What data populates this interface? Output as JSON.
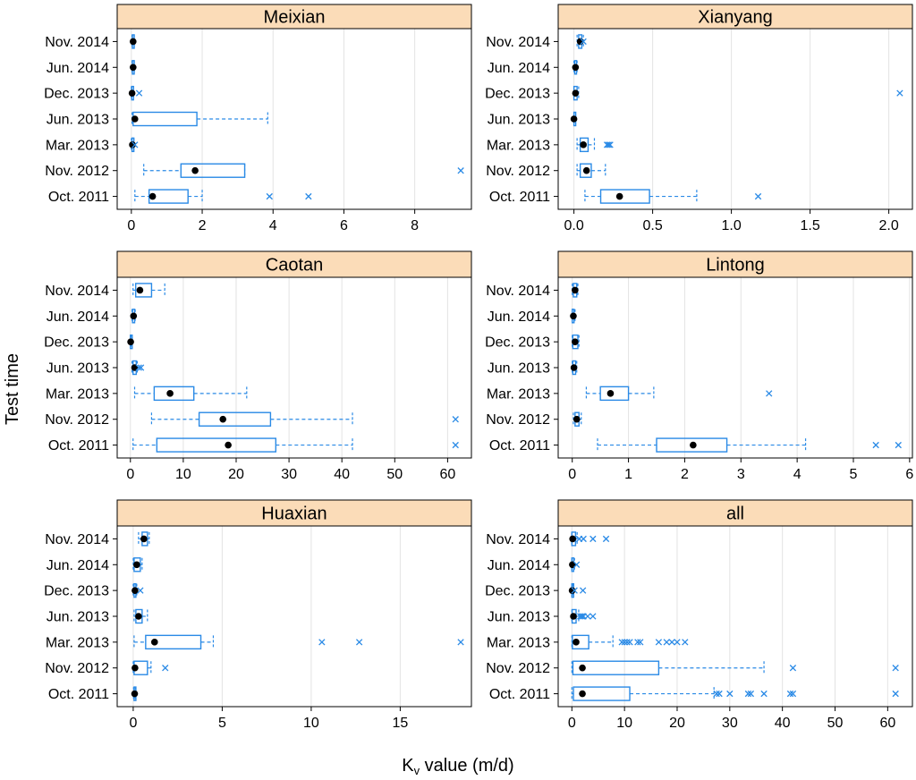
{
  "figure": {
    "ylabel": "Test time",
    "xlabel_main": "K",
    "xlabel_sub": "v",
    "xlabel_rest": " value (m/d)"
  },
  "colors": {
    "box": "#2a8ae6",
    "median_dot": "#000000",
    "outlier": "#2a8ae6",
    "strip_fill": "#fbdcb8",
    "grid": "#e3e3e3"
  },
  "chart_data": [
    {
      "type": "boxplot",
      "title": "Meixian",
      "categories": [
        "Oct. 2011",
        "Nov. 2012",
        "Mar. 2013",
        "Jun. 2013",
        "Dec. 2013",
        "Jun. 2014",
        "Nov. 2014"
      ],
      "xlim": [
        -0.4,
        9.6
      ],
      "xticks": [
        0,
        2,
        4,
        6,
        8
      ],
      "boxes": [
        {
          "wlo": 0.1,
          "q1": 0.5,
          "med": 0.6,
          "q3": 1.6,
          "whi": 2.0,
          "out": [
            3.9,
            5.0
          ]
        },
        {
          "wlo": 0.35,
          "q1": 1.4,
          "med": 1.8,
          "q3": 3.2,
          "whi": 3.2,
          "out": [
            9.3
          ]
        },
        {
          "wlo": 0.0,
          "q1": 0.02,
          "med": 0.03,
          "q3": 0.05,
          "whi": 0.07,
          "out": [
            0.1
          ]
        },
        {
          "wlo": 0.02,
          "q1": 0.05,
          "med": 0.1,
          "q3": 1.85,
          "whi": 3.85,
          "out": []
        },
        {
          "wlo": 0.0,
          "q1": 0.01,
          "med": 0.02,
          "q3": 0.04,
          "whi": 0.06,
          "out": [
            0.22
          ]
        },
        {
          "wlo": 0.02,
          "q1": 0.03,
          "med": 0.05,
          "q3": 0.07,
          "whi": 0.08,
          "out": []
        },
        {
          "wlo": 0.02,
          "q1": 0.03,
          "med": 0.05,
          "q3": 0.07,
          "whi": 0.08,
          "out": []
        }
      ]
    },
    {
      "type": "boxplot",
      "title": "Xianyang",
      "categories": [
        "Oct. 2011",
        "Nov. 2012",
        "Mar. 2013",
        "Jun. 2013",
        "Dec. 2013",
        "Jun. 2014",
        "Nov. 2014"
      ],
      "xlim": [
        -0.1,
        2.15
      ],
      "xticks": [
        0.0,
        0.5,
        1.0,
        1.5,
        2.0
      ],
      "boxes": [
        {
          "wlo": 0.07,
          "q1": 0.17,
          "med": 0.29,
          "q3": 0.48,
          "whi": 0.78,
          "out": [
            1.17
          ]
        },
        {
          "wlo": 0.02,
          "q1": 0.04,
          "med": 0.08,
          "q3": 0.11,
          "whi": 0.2,
          "out": []
        },
        {
          "wlo": 0.02,
          "q1": 0.04,
          "med": 0.06,
          "q3": 0.09,
          "whi": 0.13,
          "out": [
            0.21,
            0.22,
            0.23
          ]
        },
        {
          "wlo": 0.0,
          "q1": 0.0,
          "med": 0.0,
          "q3": 0.0,
          "whi": 0.0,
          "out": []
        },
        {
          "wlo": 0.0,
          "q1": 0.0,
          "med": 0.01,
          "q3": 0.02,
          "whi": 0.03,
          "out": [
            2.07
          ]
        },
        {
          "wlo": 0.0,
          "q1": 0.005,
          "med": 0.01,
          "q3": 0.015,
          "whi": 0.02,
          "out": []
        },
        {
          "wlo": 0.02,
          "q1": 0.03,
          "med": 0.04,
          "q3": 0.05,
          "whi": 0.06,
          "out": [
            0.06
          ]
        }
      ]
    },
    {
      "type": "boxplot",
      "title": "Caotan",
      "categories": [
        "Oct. 2011",
        "Nov. 2012",
        "Mar. 2013",
        "Jun. 2013",
        "Dec. 2013",
        "Jun. 2014",
        "Nov. 2014"
      ],
      "xlim": [
        -2.5,
        64.5
      ],
      "xticks": [
        0,
        10,
        20,
        30,
        40,
        50,
        60
      ],
      "boxes": [
        {
          "wlo": 0.5,
          "q1": 5.0,
          "med": 18.5,
          "q3": 27.5,
          "whi": 42.0,
          "out": [
            61.5
          ]
        },
        {
          "wlo": 4.0,
          "q1": 13.0,
          "med": 17.5,
          "q3": 26.5,
          "whi": 42.0,
          "out": [
            61.5
          ]
        },
        {
          "wlo": 0.8,
          "q1": 4.5,
          "med": 7.5,
          "q3": 12.0,
          "whi": 22.0,
          "out": []
        },
        {
          "wlo": 0.3,
          "q1": 0.5,
          "med": 0.8,
          "q3": 1.1,
          "whi": 1.3,
          "out": [
            1.6,
            2.0
          ]
        },
        {
          "wlo": 0.0,
          "q1": 0.0,
          "med": 0.05,
          "q3": 0.1,
          "whi": 0.1,
          "out": []
        },
        {
          "wlo": 0.3,
          "q1": 0.4,
          "med": 0.6,
          "q3": 0.8,
          "whi": 0.9,
          "out": []
        },
        {
          "wlo": 0.5,
          "q1": 1.0,
          "med": 1.8,
          "q3": 4.0,
          "whi": 6.5,
          "out": []
        }
      ]
    },
    {
      "type": "boxplot",
      "title": "Lintong",
      "categories": [
        "Oct. 2011",
        "Nov. 2012",
        "Mar. 2013",
        "Jun. 2013",
        "Dec. 2013",
        "Jun. 2014",
        "Nov. 2014"
      ],
      "xlim": [
        -0.25,
        6.05
      ],
      "xticks": [
        0,
        1,
        2,
        3,
        4,
        5,
        6
      ],
      "boxes": [
        {
          "wlo": 0.45,
          "q1": 1.5,
          "med": 2.15,
          "q3": 2.75,
          "whi": 4.15,
          "out": [
            5.4,
            5.8
          ]
        },
        {
          "wlo": 0.02,
          "q1": 0.05,
          "med": 0.08,
          "q3": 0.12,
          "whi": 0.16,
          "out": []
        },
        {
          "wlo": 0.25,
          "q1": 0.5,
          "med": 0.68,
          "q3": 1.0,
          "whi": 1.45,
          "out": [
            3.5
          ]
        },
        {
          "wlo": 0.0,
          "q1": 0.01,
          "med": 0.03,
          "q3": 0.06,
          "whi": 0.08,
          "out": []
        },
        {
          "wlo": 0.0,
          "q1": 0.01,
          "med": 0.05,
          "q3": 0.1,
          "whi": 0.12,
          "out": []
        },
        {
          "wlo": 0.0,
          "q1": 0.0,
          "med": 0.02,
          "q3": 0.03,
          "whi": 0.05,
          "out": []
        },
        {
          "wlo": 0.0,
          "q1": 0.02,
          "med": 0.05,
          "q3": 0.08,
          "whi": 0.1,
          "out": []
        }
      ]
    },
    {
      "type": "boxplot",
      "title": "Huaxian",
      "categories": [
        "Oct. 2011",
        "Nov. 2012",
        "Mar. 2013",
        "Jun. 2013",
        "Dec. 2013",
        "Jun. 2014",
        "Nov. 2014"
      ],
      "xlim": [
        -0.9,
        19.0
      ],
      "xticks": [
        0,
        5,
        10,
        15
      ],
      "boxes": [
        {
          "wlo": 0.02,
          "q1": 0.05,
          "med": 0.08,
          "q3": 0.1,
          "whi": 0.12,
          "out": []
        },
        {
          "wlo": 0.0,
          "q1": 0.05,
          "med": 0.1,
          "q3": 0.8,
          "whi": 1.0,
          "out": [
            1.8
          ]
        },
        {
          "wlo": 0.05,
          "q1": 0.7,
          "med": 1.2,
          "q3": 3.8,
          "whi": 4.5,
          "out": [
            10.6,
            12.7,
            18.4
          ]
        },
        {
          "wlo": 0.05,
          "q1": 0.15,
          "med": 0.3,
          "q3": 0.5,
          "whi": 0.8,
          "out": []
        },
        {
          "wlo": 0.0,
          "q1": 0.05,
          "med": 0.1,
          "q3": 0.15,
          "whi": 0.2,
          "out": [
            0.4
          ]
        },
        {
          "wlo": 0.0,
          "q1": 0.05,
          "med": 0.2,
          "q3": 0.4,
          "whi": 0.5,
          "out": []
        },
        {
          "wlo": 0.3,
          "q1": 0.5,
          "med": 0.6,
          "q3": 0.8,
          "whi": 0.9,
          "out": []
        }
      ]
    },
    {
      "type": "boxplot",
      "title": "all",
      "categories": [
        "Oct. 2011",
        "Nov. 2012",
        "Mar. 2013",
        "Jun. 2013",
        "Dec. 2013",
        "Jun. 2014",
        "Nov. 2014"
      ],
      "xlim": [
        -2.6,
        64.7
      ],
      "xticks": [
        0,
        10,
        20,
        30,
        40,
        50,
        60
      ],
      "boxes": [
        {
          "wlo": 0.0,
          "q1": 0.3,
          "med": 2.0,
          "q3": 11.0,
          "whi": 27.0,
          "out": [
            27.5,
            28.0,
            30.0,
            33.5,
            34.0,
            36.5,
            41.5,
            42.0,
            61.5
          ]
        },
        {
          "wlo": 0.0,
          "q1": 0.2,
          "med": 2.0,
          "q3": 16.5,
          "whi": 36.5,
          "out": [
            42.0,
            61.5
          ]
        },
        {
          "wlo": 0.0,
          "q1": 0.1,
          "med": 0.8,
          "q3": 3.2,
          "whi": 7.8,
          "out": [
            9.5,
            10.0,
            10.5,
            11.0,
            12.5,
            13.0,
            16.5,
            18.0,
            19.0,
            20.0,
            21.5
          ]
        },
        {
          "wlo": 0.0,
          "q1": 0.05,
          "med": 0.3,
          "q3": 0.8,
          "whi": 1.3,
          "out": [
            1.6,
            1.9,
            2.2,
            3.0,
            4.0
          ]
        },
        {
          "wlo": 0.0,
          "q1": 0.0,
          "med": 0.05,
          "q3": 0.1,
          "whi": 0.2,
          "out": [
            0.5,
            2.1
          ]
        },
        {
          "wlo": 0.0,
          "q1": 0.0,
          "med": 0.1,
          "q3": 0.3,
          "whi": 0.5,
          "out": [
            0.9
          ]
        },
        {
          "wlo": 0.0,
          "q1": 0.0,
          "med": 0.15,
          "q3": 0.7,
          "whi": 1.0,
          "out": [
            1.4,
            2.2,
            4.0,
            6.5
          ]
        }
      ]
    }
  ]
}
